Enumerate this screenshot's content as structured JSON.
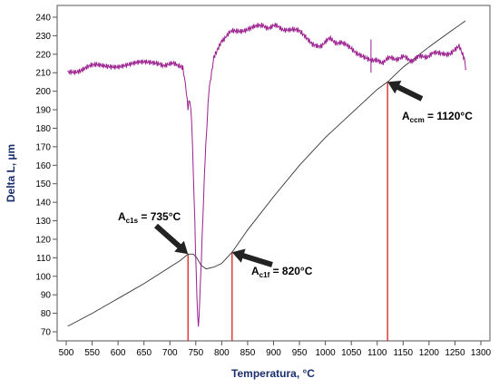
{
  "chart_data": {
    "type": "line",
    "xlabel": "Temperatura, °C",
    "ylabel": "Delta L, µm",
    "xlim": [
      500,
      1300
    ],
    "ylim": [
      65,
      243
    ],
    "x_ticks": [
      500,
      550,
      600,
      650,
      700,
      750,
      800,
      850,
      900,
      950,
      1000,
      1050,
      1100,
      1150,
      1200,
      1250,
      1300
    ],
    "y_ticks": [
      70,
      80,
      90,
      100,
      110,
      120,
      130,
      140,
      150,
      160,
      170,
      180,
      190,
      200,
      210,
      220,
      230,
      240
    ],
    "grid": false,
    "legend": "none",
    "series": [
      {
        "role": "dilatation",
        "color": "#333333",
        "points": [
          [
            503,
            73
          ],
          [
            550,
            80
          ],
          [
            600,
            88
          ],
          [
            650,
            96
          ],
          [
            700,
            105
          ],
          [
            720,
            108.5
          ],
          [
            735,
            112
          ],
          [
            745,
            112
          ],
          [
            752,
            110
          ],
          [
            760,
            106
          ],
          [
            770,
            104
          ],
          [
            785,
            105
          ],
          [
            800,
            107
          ],
          [
            820,
            113
          ],
          [
            850,
            125
          ],
          [
            900,
            143
          ],
          [
            950,
            160
          ],
          [
            1000,
            175
          ],
          [
            1050,
            188
          ],
          [
            1100,
            201
          ],
          [
            1120,
            205
          ],
          [
            1150,
            213
          ],
          [
            1200,
            224
          ],
          [
            1240,
            232
          ],
          [
            1270,
            238
          ]
        ]
      },
      {
        "role": "derivative",
        "color": "#9b1f8f",
        "points": [
          [
            503,
            210
          ],
          [
            530,
            212
          ],
          [
            560,
            214
          ],
          [
            600,
            214
          ],
          [
            640,
            215
          ],
          [
            680,
            215
          ],
          [
            715,
            214
          ],
          [
            725,
            212
          ],
          [
            730,
            205
          ],
          [
            735,
            190
          ],
          [
            738,
            195
          ],
          [
            742,
            185
          ],
          [
            748,
            130
          ],
          [
            752,
            90
          ],
          [
            755,
            72
          ],
          [
            758,
            90
          ],
          [
            762,
            120
          ],
          [
            768,
            165
          ],
          [
            775,
            200
          ],
          [
            785,
            218
          ],
          [
            800,
            228
          ],
          [
            820,
            232
          ],
          [
            850,
            234
          ],
          [
            880,
            235
          ],
          [
            900,
            235
          ],
          [
            920,
            234
          ],
          [
            950,
            232
          ],
          [
            975,
            225
          ],
          [
            990,
            225
          ],
          [
            1010,
            228
          ],
          [
            1030,
            226
          ],
          [
            1060,
            221
          ],
          [
            1085,
            218
          ],
          [
            1100,
            217
          ],
          [
            1110,
            216
          ],
          [
            1130,
            218
          ],
          [
            1150,
            218
          ],
          [
            1170,
            217
          ],
          [
            1190,
            219
          ],
          [
            1210,
            220
          ],
          [
            1240,
            221
          ],
          [
            1258,
            224
          ],
          [
            1268,
            218
          ],
          [
            1272,
            212
          ]
        ]
      }
    ],
    "spikes": [
      {
        "x": 1088,
        "y_from": 210,
        "y_to": 228
      }
    ],
    "vlines": [
      735,
      820,
      1120
    ],
    "annotations": [
      {
        "id": "ac1s",
        "main": "A",
        "sub": "c1s",
        "rest": " = 735°C",
        "point": [
          735,
          112
        ]
      },
      {
        "id": "ac1f",
        "main": "A",
        "sub": "c1f",
        "rest": " = 820°C",
        "point": [
          820,
          113
        ]
      },
      {
        "id": "accm",
        "main": "A",
        "sub": "ccm",
        "rest": " = 1120°C",
        "point": [
          1120,
          205
        ]
      }
    ],
    "colors": {
      "axis_title": "#1a2e6e",
      "vline": "#d81e1e",
      "arrow": "#222222"
    }
  }
}
